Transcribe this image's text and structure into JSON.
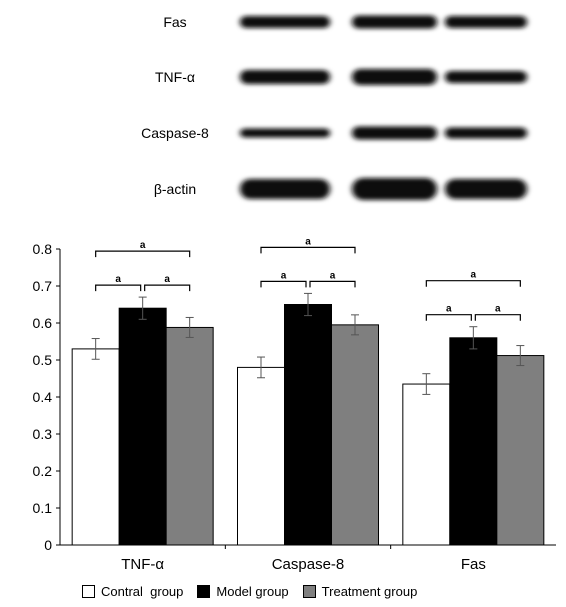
{
  "blot": {
    "labels": [
      "Fas",
      "TNF-α",
      "Caspase-8",
      "β-actin"
    ],
    "lanes": 3
  },
  "chart_data": {
    "type": "bar",
    "categories": [
      "TNF-α",
      "Caspase-8",
      "Fas"
    ],
    "series": [
      {
        "name": "Contral  group",
        "values": [
          0.53,
          0.48,
          0.435
        ],
        "errors": [
          0.028,
          0.028,
          0.028
        ],
        "color": "#ffffff"
      },
      {
        "name": "Model group",
        "values": [
          0.64,
          0.65,
          0.56
        ],
        "errors": [
          0.03,
          0.03,
          0.03
        ],
        "color": "#000000"
      },
      {
        "name": "Treatment group",
        "values": [
          0.588,
          0.595,
          0.512
        ],
        "errors": [
          0.027,
          0.027,
          0.027
        ],
        "color": "#7f7f7f"
      }
    ],
    "ylim": [
      0,
      0.8
    ],
    "yticks": [
      "0",
      "0.1",
      "0.2",
      "0.3",
      "0.4",
      "0.5",
      "0.6",
      "0.7",
      "0.8"
    ],
    "significance_label": "a",
    "significance_pairs": [
      [
        0,
        2
      ],
      [
        0,
        1
      ],
      [
        1,
        2
      ]
    ],
    "legend_position": "bottom"
  }
}
